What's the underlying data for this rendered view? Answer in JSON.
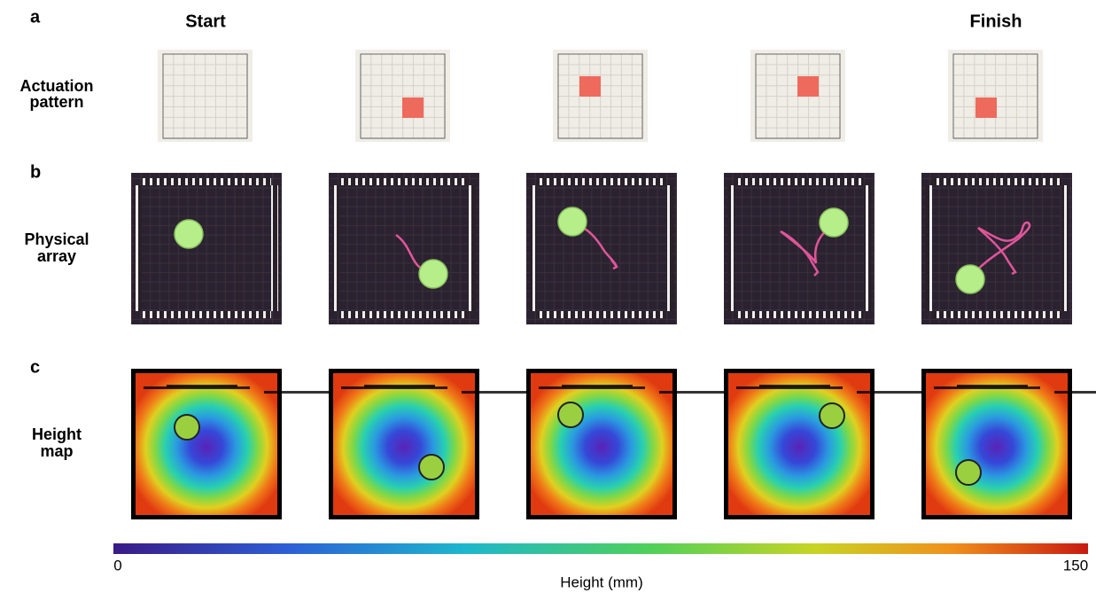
{
  "panels": [
    {
      "letter": "a",
      "row_label": [
        "Actuation",
        "pattern"
      ]
    },
    {
      "letter": "b",
      "row_label": [
        "Physical",
        "array"
      ]
    },
    {
      "letter": "c",
      "row_label": [
        "Height",
        "map"
      ]
    }
  ],
  "column_labels": {
    "start": "Start",
    "finish": "Finish"
  },
  "colorbar": {
    "min": 0,
    "max": 150,
    "label": "Height (mm)"
  }
}
